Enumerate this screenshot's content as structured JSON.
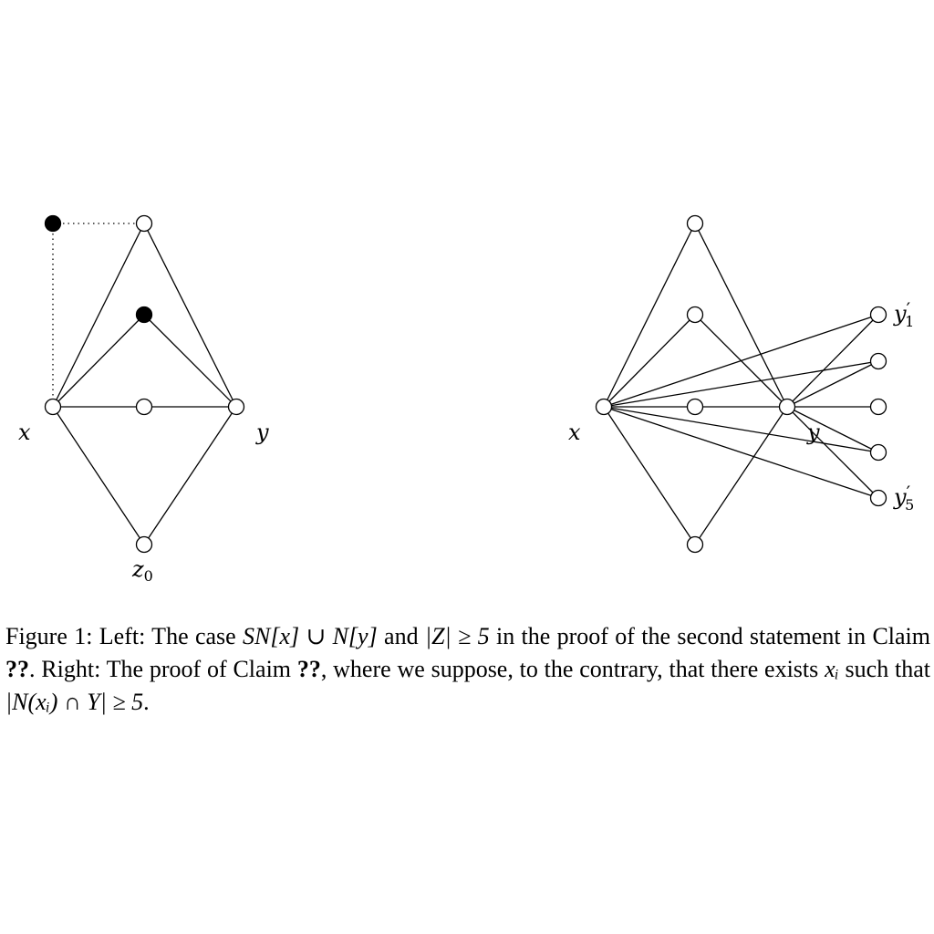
{
  "labels": {
    "left_x": "x",
    "left_y": "y",
    "left_z_base": "z",
    "left_z_sub": "0",
    "right_x": "x",
    "right_y": "y",
    "right_y1_base": "y",
    "right_y1_prime": "′",
    "right_y1_sub": "1",
    "right_y5_base": "y",
    "right_y5_prime": "′",
    "right_y5_sub": "5"
  },
  "caption": {
    "figure_label": "Figure 1:",
    "p1": " Left: The case ",
    "m1": "SN[x] ∪ N[y]",
    "p2": " and ",
    "m2": "|Z| ≥ 5",
    "p3": " in the proof of the second statement in Claim ",
    "ref1": "??",
    "p4": ". Right: The proof of Claim ",
    "ref2": "??",
    "p5": ", where we suppose, to the contrary, that there exists ",
    "m3": "xᵢ",
    "p6": " such that ",
    "m4": "|N(xᵢ) ∩ Y| ≥ 5",
    "p7": "."
  }
}
